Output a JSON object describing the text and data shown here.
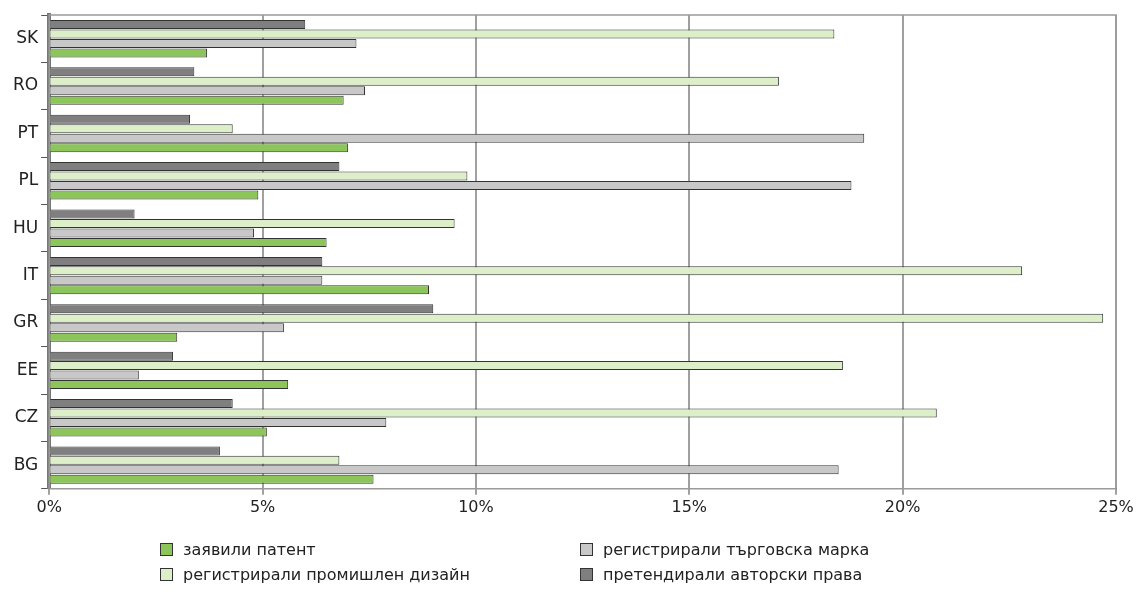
{
  "chart_data": {
    "type": "bar",
    "orientation": "horizontal",
    "categories": [
      "SK",
      "RO",
      "PT",
      "PL",
      "HU",
      "IT",
      "GR",
      "EE",
      "CZ",
      "BG"
    ],
    "series": [
      {
        "name": "заявили патент",
        "color": "#8cc65a",
        "values": [
          3.7,
          6.9,
          7.0,
          4.9,
          6.5,
          8.9,
          3.0,
          5.6,
          5.1,
          7.6
        ]
      },
      {
        "name": "регистрирали търговска марка",
        "color": "#c8c8c8",
        "values": [
          7.2,
          7.4,
          19.1,
          18.8,
          4.8,
          6.4,
          5.5,
          2.1,
          7.9,
          18.5
        ]
      },
      {
        "name": "регистрирали промишлен дизайн",
        "color": "#dcefc8",
        "values": [
          18.4,
          17.1,
          4.3,
          9.8,
          9.5,
          22.8,
          24.7,
          18.6,
          20.8,
          6.8
        ]
      },
      {
        "name": "претендирали авторски права",
        "color": "#7f7f7f",
        "values": [
          6.0,
          3.4,
          3.3,
          6.8,
          2.0,
          6.4,
          9.0,
          2.9,
          4.3,
          4.0
        ]
      }
    ],
    "xlim": [
      0,
      25
    ],
    "xticks": [
      {
        "value": 0,
        "label": "0%"
      },
      {
        "value": 5,
        "label": "5%"
      },
      {
        "value": 10,
        "label": "10%"
      },
      {
        "value": 15,
        "label": "15%"
      },
      {
        "value": 20,
        "label": "20%"
      },
      {
        "value": 25,
        "label": "25%"
      }
    ],
    "grid": "x",
    "legend": "bottom"
  }
}
